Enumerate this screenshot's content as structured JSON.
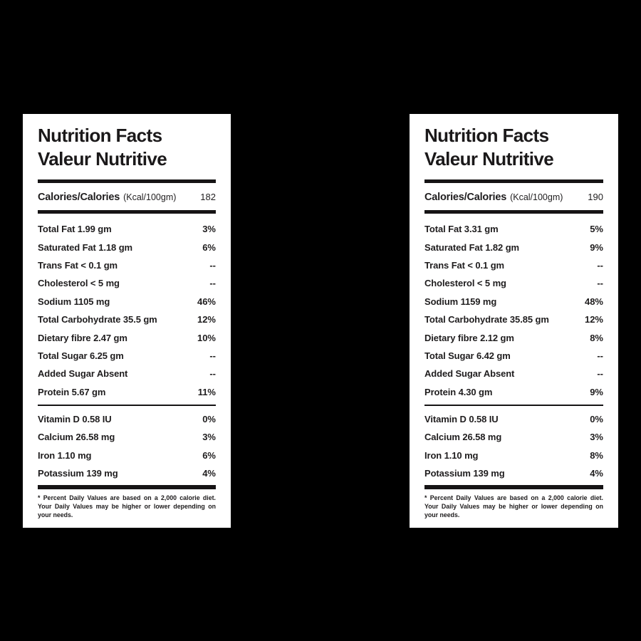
{
  "colors": {
    "page_background": "#000000",
    "label_background": "#ffffff",
    "text": "#1f1d1e",
    "rule": "#161415"
  },
  "labels": [
    {
      "title_line1": "Nutrition Facts",
      "title_line2": "Valeur Nutritive",
      "calories_label": "Calories/Calories",
      "calories_unit": "(Kcal/100gm)",
      "calories_value": "182",
      "nutrients": [
        {
          "name": "Total Fat 1.99 gm",
          "dv": "3%"
        },
        {
          "name": "Saturated Fat 1.18 gm",
          "dv": "6%"
        },
        {
          "name": "Trans Fat < 0.1 gm",
          "dv": "--"
        },
        {
          "name": "Cholesterol < 5 mg",
          "dv": "--"
        },
        {
          "name": "Sodium 1105 mg",
          "dv": "46%"
        },
        {
          "name": "Total Carbohydrate 35.5 gm",
          "dv": "12%"
        },
        {
          "name": "Dietary fibre 2.47 gm",
          "dv": "10%"
        },
        {
          "name": "Total Sugar 6.25 gm",
          "dv": "--"
        },
        {
          "name": "Added Sugar Absent",
          "dv": "--"
        },
        {
          "name": "Protein 5.67 gm",
          "dv": "11%"
        }
      ],
      "vitamins": [
        {
          "name": "Vitamin D 0.58 IU",
          "dv": "0%"
        },
        {
          "name": "Calcium 26.58 mg",
          "dv": "3%"
        },
        {
          "name": "Iron 1.10 mg",
          "dv": "6%"
        },
        {
          "name": "Potassium 139 mg",
          "dv": "4%"
        }
      ],
      "footnote": "* Percent Daily Values are based on a 2,000 calorie diet. Your Daily Values may be higher or lower depending on your needs."
    },
    {
      "title_line1": "Nutrition Facts",
      "title_line2": "Valeur Nutritive",
      "calories_label": "Calories/Calories",
      "calories_unit": "(Kcal/100gm)",
      "calories_value": "190",
      "nutrients": [
        {
          "name": "Total Fat 3.31 gm",
          "dv": "5%"
        },
        {
          "name": "Saturated Fat 1.82 gm",
          "dv": "9%"
        },
        {
          "name": "Trans Fat < 0.1 gm",
          "dv": "--"
        },
        {
          "name": "Cholesterol < 5 mg",
          "dv": "--"
        },
        {
          "name": "Sodium 1159 mg",
          "dv": "48%"
        },
        {
          "name": "Total Carbohydrate 35.85 gm",
          "dv": "12%"
        },
        {
          "name": "Dietary fibre 2.12 gm",
          "dv": "8%"
        },
        {
          "name": "Total Sugar 6.42 gm",
          "dv": "--"
        },
        {
          "name": "Added Sugar Absent",
          "dv": "--"
        },
        {
          "name": "Protein 4.30 gm",
          "dv": "9%"
        }
      ],
      "vitamins": [
        {
          "name": "Vitamin D 0.58 IU",
          "dv": "0%"
        },
        {
          "name": "Calcium 26.58 mg",
          "dv": "3%"
        },
        {
          "name": "Iron 1.10 mg",
          "dv": "8%"
        },
        {
          "name": "Potassium 139 mg",
          "dv": "4%"
        }
      ],
      "footnote": "* Percent Daily Values are based on a 2,000 calorie diet. Your Daily Values may be higher or lower depending on your needs."
    }
  ]
}
